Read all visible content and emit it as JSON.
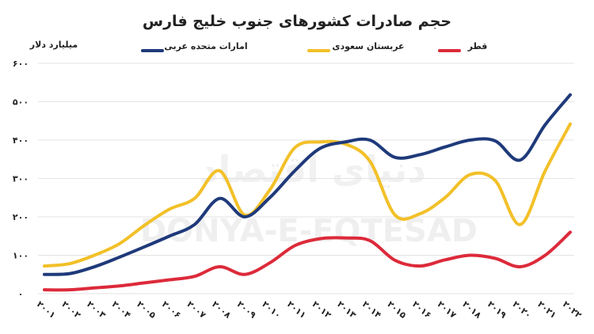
{
  "chart_data": {
    "type": "line",
    "title": "حجم صادرات کشورهای جنوب خلیج فارس",
    "ylabel": "میلیارد دلار",
    "xlabel": "",
    "ylim": [
      0,
      600
    ],
    "yticks": [
      0,
      100,
      200,
      300,
      400,
      500,
      600
    ],
    "ytick_labels": [
      "۰",
      "۱۰۰",
      "۲۰۰",
      "۳۰۰",
      "۴۰۰",
      "۵۰۰",
      "۶۰۰"
    ],
    "x": [
      2001,
      2002,
      2003,
      2004,
      2005,
      2006,
      2007,
      2008,
      2009,
      2010,
      2011,
      2012,
      2013,
      2014,
      2015,
      2016,
      2017,
      2018,
      2019,
      2020,
      2021,
      2022
    ],
    "x_labels": [
      "۲۰۰۱",
      "۲۰۰۲",
      "۲۰۰۳",
      "۲۰۰۴",
      "۲۰۰۵",
      "۲۰۰۶",
      "۲۰۰۷",
      "۲۰۰۸",
      "۲۰۰۹",
      "۲۰۱۰",
      "۲۰۱۱",
      "۲۰۱۲",
      "۲۰۱۳",
      "۲۰۱۴",
      "۲۰۱۵",
      "۲۰۱۶",
      "۲۰۱۷",
      "۲۰۱۸",
      "۲۰۱۹",
      "۲۰۲۰",
      "۲۰۲۱",
      "۲۰۲۲"
    ],
    "grid": true,
    "legend_position": "top",
    "series": [
      {
        "name": "امارات متحده عربی",
        "color": "#1f3a7a",
        "values": [
          50,
          52,
          70,
          95,
          122,
          150,
          180,
          248,
          200,
          250,
          320,
          378,
          395,
          400,
          355,
          362,
          382,
          400,
          398,
          348,
          440,
          518
        ]
      },
      {
        "name": "عربستان سعودی",
        "color": "#f2c028",
        "values": [
          72,
          78,
          100,
          130,
          178,
          220,
          248,
          320,
          205,
          270,
          380,
          395,
          390,
          345,
          205,
          208,
          250,
          310,
          295,
          180,
          320,
          442
        ]
      },
      {
        "name": "قطر",
        "color": "#dc2a3a",
        "values": [
          10,
          10,
          15,
          20,
          28,
          36,
          45,
          70,
          50,
          80,
          125,
          143,
          145,
          138,
          87,
          72,
          88,
          100,
          92,
          70,
          100,
          160
        ]
      }
    ]
  },
  "watermark": {
    "persian": "دنیای اقتصاد",
    "latin": "DONYA-E-EQTESAD"
  }
}
